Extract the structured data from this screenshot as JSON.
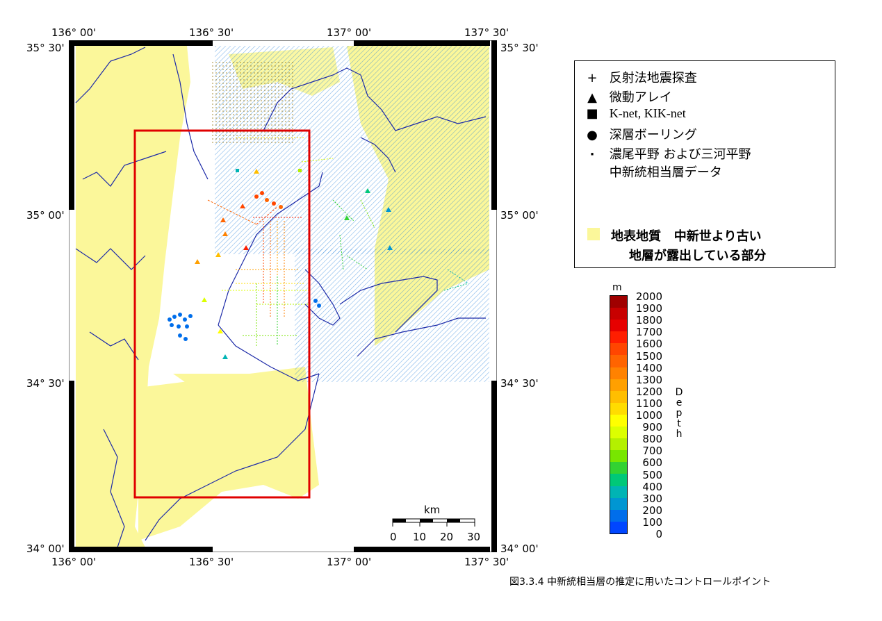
{
  "map": {
    "lon_labels": [
      "136° 00'",
      "136° 30'",
      "137° 00'",
      "137° 30'"
    ],
    "lat_labels": [
      "35° 30'",
      "35° 00'",
      "34° 30'",
      "34° 00'"
    ],
    "scale_bar": {
      "unit": "km",
      "ticks": [
        "0",
        "10",
        "20",
        "30"
      ]
    }
  },
  "legend": {
    "items": [
      {
        "symbol": "+",
        "label": "反射法地震探査"
      },
      {
        "symbol": "▲",
        "label": "微動アレイ"
      },
      {
        "symbol": "■",
        "label": "K-net, KIK-net"
      },
      {
        "symbol": "●",
        "label": "深層ボーリング"
      },
      {
        "symbol": "·",
        "label": "濃尾平野 および三河平野"
      },
      {
        "symbol": "",
        "label": "中新統相当層データ"
      }
    ],
    "geology_label_line1": "地表地質   中新世より古い",
    "geology_label_line2": "地層が露出している部分",
    "geology_color": "#fbf79a"
  },
  "colorbar": {
    "unit": "m",
    "title_letters": [
      "D",
      "e",
      "p",
      "t",
      "h"
    ],
    "ticks": [
      "2000",
      "1900",
      "1800",
      "1700",
      "1600",
      "1500",
      "1400",
      "1300",
      "1200",
      "1100",
      "1000",
      "900",
      "800",
      "700",
      "600",
      "500",
      "400",
      "300",
      "200",
      "100",
      "0"
    ],
    "colors": [
      "#a00000",
      "#c80000",
      "#e60000",
      "#ff1e00",
      "#ff4600",
      "#ff6400",
      "#ff8200",
      "#ffa000",
      "#ffbe00",
      "#ffdc00",
      "#ffff00",
      "#dcff00",
      "#b4f000",
      "#78e600",
      "#32d232",
      "#00c878",
      "#00b4b4",
      "#0096d2",
      "#006eeb",
      "#0046ff"
    ]
  },
  "caption": "図3.3.4  中新統相当層の推定に用いたコントロールポイント"
}
